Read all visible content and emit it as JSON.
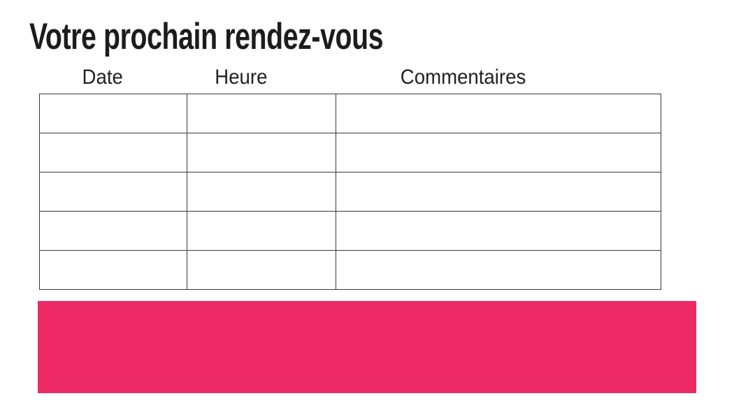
{
  "page_title": "Votre prochain rendez-vous",
  "table": {
    "headers": [
      "Date",
      "Heure",
      "Commentaires"
    ],
    "rows": [
      {
        "date": "",
        "heure": "",
        "commentaires": ""
      },
      {
        "date": "",
        "heure": "",
        "commentaires": ""
      },
      {
        "date": "",
        "heure": "",
        "commentaires": ""
      },
      {
        "date": "",
        "heure": "",
        "commentaires": ""
      },
      {
        "date": "",
        "heure": "",
        "commentaires": ""
      }
    ]
  },
  "banner": {
    "color": "#ED2A67"
  },
  "colors": {
    "text": "#231F20",
    "table_border": "#3A3A3A"
  }
}
